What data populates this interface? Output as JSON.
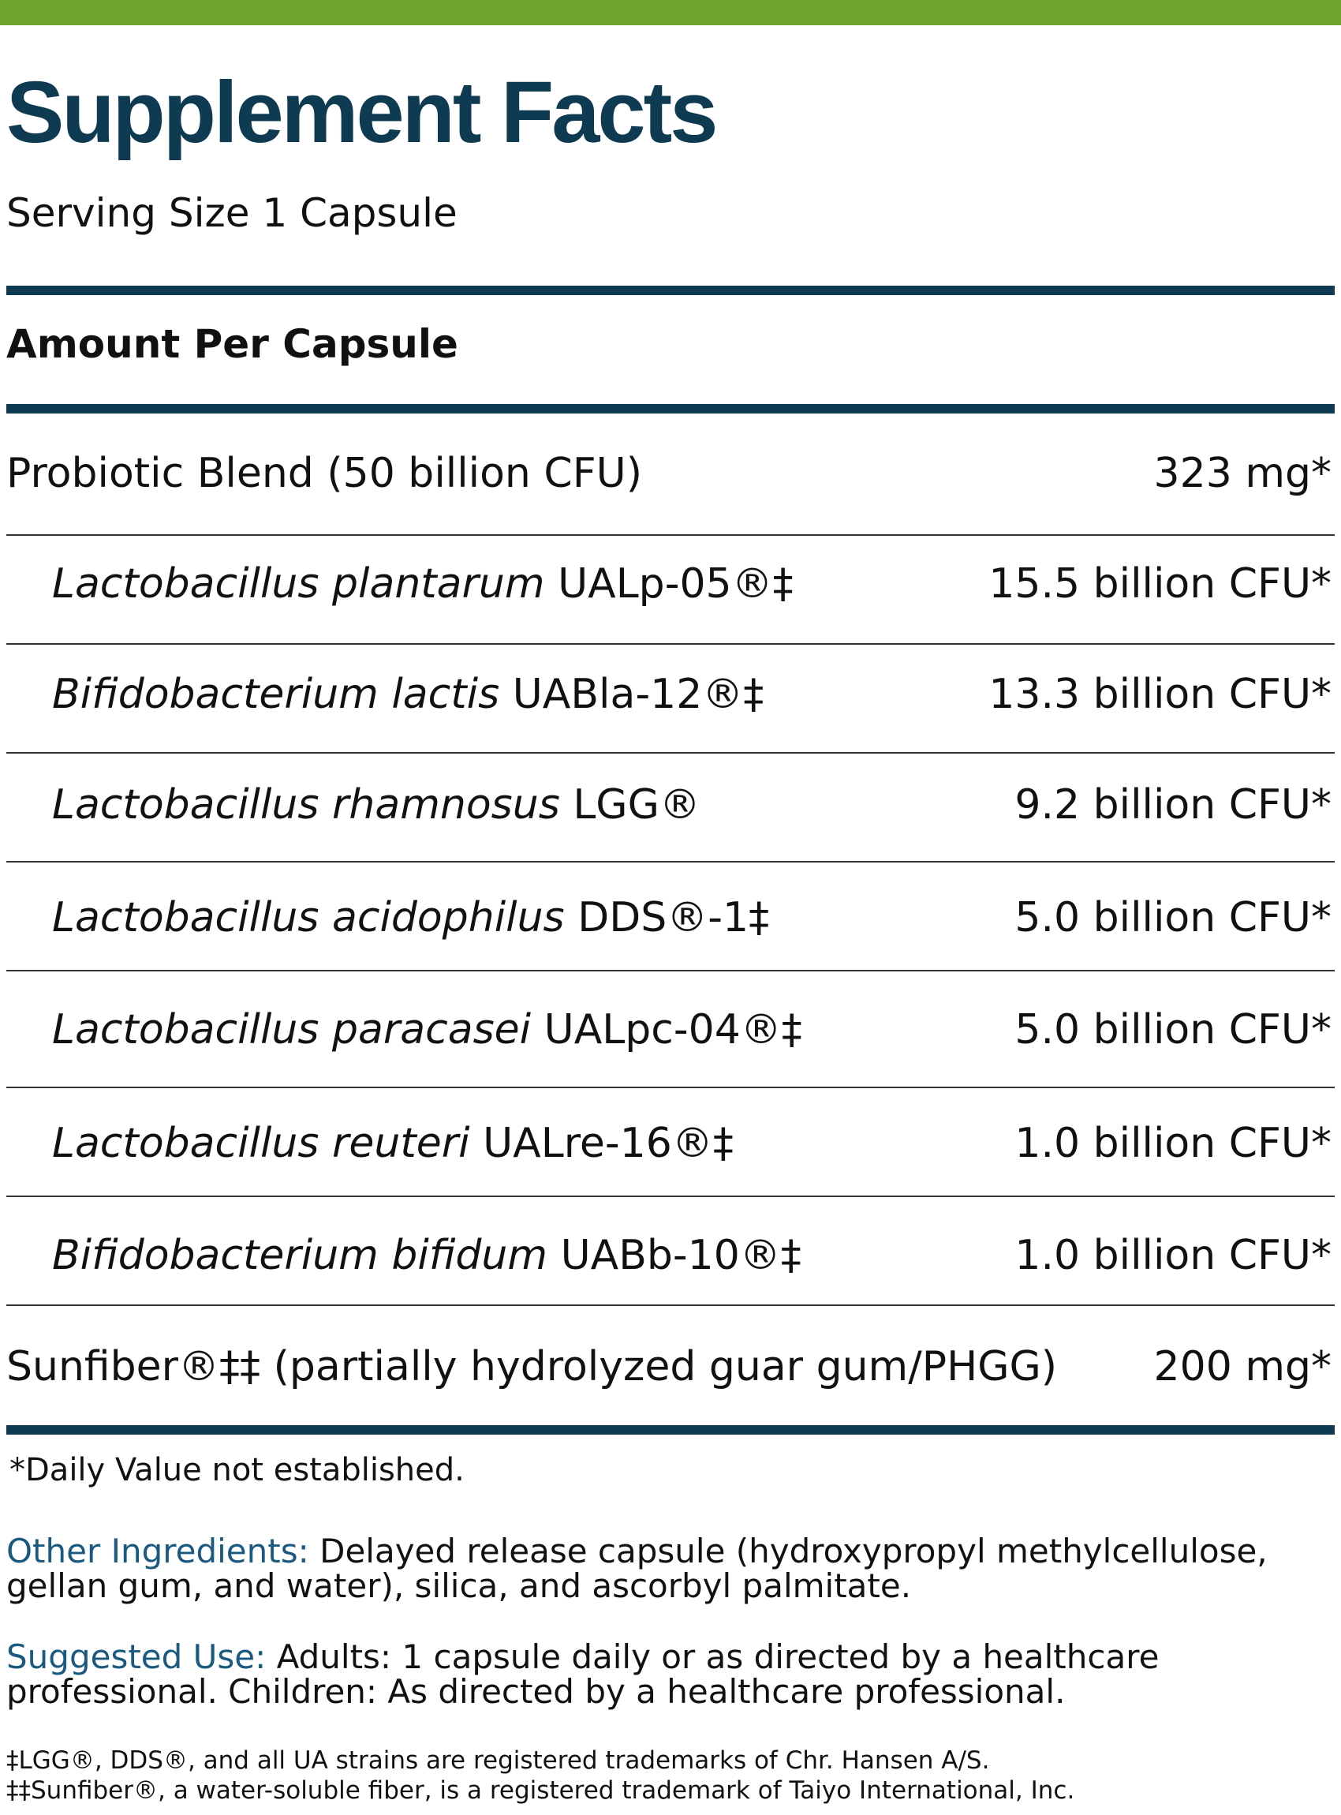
{
  "colors": {
    "top_bar": "#6ea42e",
    "title": "#0e3a52",
    "rules": "#0e3a52",
    "label_accent": "#1a5a80"
  },
  "title": "Supplement Facts",
  "serving_size": "Serving Size 1 Capsule",
  "amount_header": "Amount Per Capsule",
  "blend": {
    "name": "Probiotic Blend (50 billion CFU)",
    "amount": "323 mg*"
  },
  "strains": [
    {
      "genus": "Lactobacillus",
      "species": "plantarum",
      "strain": "UALp-05®‡",
      "amount": "15.5 billion CFU*"
    },
    {
      "genus": "Bifidobacterium",
      "species": "lactis",
      "strain": "UABla-12®‡",
      "amount": "13.3 billion CFU*"
    },
    {
      "genus": "Lactobacillus",
      "species": "rhamnosus",
      "strain": "LGG®",
      "amount": "9.2 billion CFU*"
    },
    {
      "genus": "Lactobacillus",
      "species": "acidophilus",
      "strain": "DDS®-1‡",
      "amount": "5.0 billion CFU*"
    },
    {
      "genus": "Lactobacillus",
      "species": "paracasei",
      "strain": "UALpc-04®‡",
      "amount": "5.0 billion CFU*"
    },
    {
      "genus": "Lactobacillus",
      "species": "reuteri",
      "strain": "UALre-16®‡",
      "amount": "1.0 billion CFU*"
    },
    {
      "genus": "Bifidobacterium",
      "species": "bifidum",
      "strain": "UABb-10®‡",
      "amount": "1.0 billion CFU*"
    }
  ],
  "sunfiber": {
    "name": "Sunfiber®‡‡ (partially hydrolyzed guar gum/PHGG)",
    "amount": "200 mg*"
  },
  "daily_value_note": "*Daily Value not established.",
  "other_ingredients": {
    "label": "Other Ingredients:",
    "text": "Delayed release capsule (hydroxypropyl methylcellulose, gellan gum, and water), silica, and ascorbyl palmitate."
  },
  "suggested_use": {
    "label": "Suggested Use:",
    "text": "Adults: 1 capsule daily or as directed by a healthcare professional. Children: As directed by a healthcare professional."
  },
  "trademarks": [
    "‡LGG®, DDS®, and all UA strains are registered trademarks of Chr. Hansen A/S.",
    "‡‡Sunfiber®, a water-soluble fiber, is a registered trademark of Taiyo International, Inc."
  ]
}
